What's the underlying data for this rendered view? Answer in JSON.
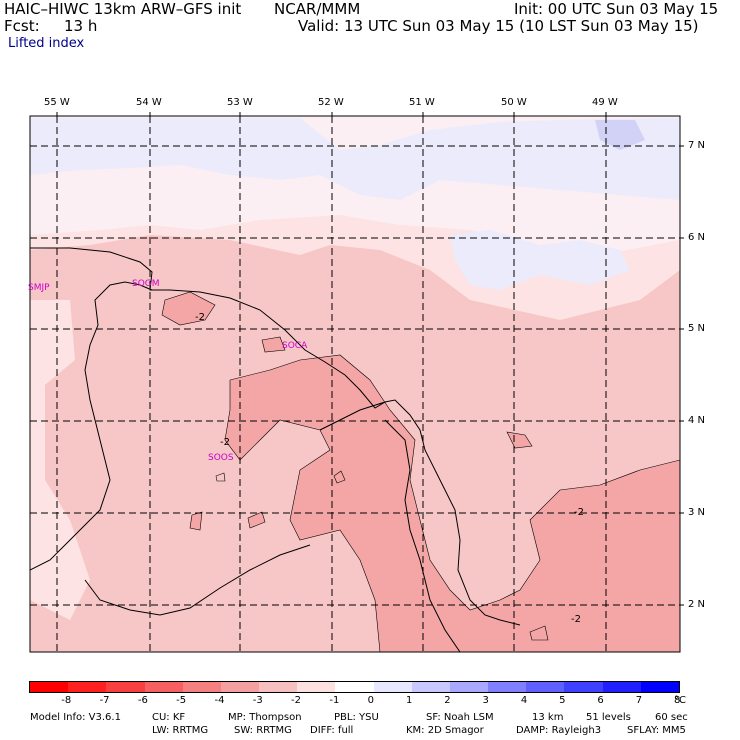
{
  "header": {
    "model": "HAIC–HIWC 13km ARW–GFS init",
    "org": "NCAR/MMM",
    "init": "Init: 00 UTC Sun 03 May 15",
    "fcst_label": "Fcst:",
    "fcst_value": "13 h",
    "valid": "Valid: 13 UTC Sun 03 May 15 (10 LST Sun 03 May 15)",
    "field": "Lifted index"
  },
  "map": {
    "lon_labels": [
      "55 W",
      "54 W",
      "53 W",
      "52 W",
      "51 W",
      "50 W",
      "49 W"
    ],
    "lat_labels": [
      "7 N",
      "6 N",
      "5 N",
      "4 N",
      "3 N",
      "2 N"
    ],
    "stations": [
      "SMJP",
      "SOGM",
      "SOCA",
      "SOOS"
    ],
    "contour_labels": [
      "-2",
      "-2",
      "-2",
      "-2"
    ],
    "colors": {
      "neg_light": "#fde3e3",
      "neg_mid": "#f7c7c7",
      "neg_strong": "#f4a6a6",
      "pos_light": "#ebebfb",
      "pos_mid": "#d2d2f7",
      "station": "#cc00cc",
      "grid": "#000000"
    }
  },
  "colorbar": {
    "colors": [
      "#ff0000",
      "#ff2020",
      "#f94040",
      "#f66060",
      "#f48080",
      "#f4a0a0",
      "#f7c0c0",
      "#fde0e0",
      "#ffffff",
      "#e7e7ff",
      "#c8c8ff",
      "#a8a8ff",
      "#8080ff",
      "#6060ff",
      "#4040ff",
      "#2020ff",
      "#0000ff"
    ],
    "labels": [
      "-8",
      "-7",
      "-6",
      "-5",
      "-4",
      "-3",
      "-2",
      "-1",
      "0",
      "1",
      "2",
      "3",
      "4",
      "5",
      "6",
      "7",
      "8"
    ],
    "unit": "°C"
  },
  "footer": {
    "line1": [
      "Model Info: V3.6.1",
      "CU: KF",
      "MP: Thompson",
      "PBL: YSU",
      "SF: Noah LSM",
      "13 km",
      "51 levels",
      "60 sec"
    ],
    "line2": [
      "LW: RRTMG",
      "SW: RRTMG",
      "DIFF: full",
      "KM: 2D Smagor",
      "DAMP: Rayleigh3",
      "SFLAY: MM5"
    ]
  }
}
